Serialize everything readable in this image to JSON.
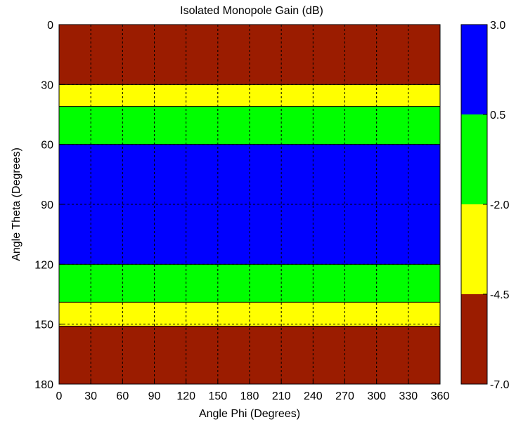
{
  "chart_data": {
    "type": "heatmap",
    "title": "Isolated Monopole Gain (dB)",
    "xlabel": "Angle Phi (Degrees)",
    "ylabel": "Angle Theta (Degrees)",
    "xlim": [
      0,
      360
    ],
    "ylim": [
      0,
      180
    ],
    "y_reversed": true,
    "grid": true,
    "xticks": [
      0,
      30,
      60,
      90,
      120,
      150,
      180,
      210,
      240,
      270,
      300,
      330,
      360
    ],
    "yticks": [
      0,
      30,
      60,
      90,
      120,
      150,
      180
    ],
    "bands": [
      {
        "theta_from": 0,
        "theta_to": 30,
        "level": "-7.0 to -4.5",
        "color": "#9b1c00"
      },
      {
        "theta_from": 30,
        "theta_to": 41,
        "level": "-4.5 to -2.0",
        "color": "#ffff00"
      },
      {
        "theta_from": 41,
        "theta_to": 60,
        "level": "-2.0 to 0.5",
        "color": "#00ff00"
      },
      {
        "theta_from": 60,
        "theta_to": 120,
        "level": "0.5 to 3.0",
        "color": "#0000ff"
      },
      {
        "theta_from": 120,
        "theta_to": 139,
        "level": "-2.0 to 0.5",
        "color": "#00ff00"
      },
      {
        "theta_from": 139,
        "theta_to": 151,
        "level": "-4.5 to -2.0",
        "color": "#ffff00"
      },
      {
        "theta_from": 151,
        "theta_to": 180,
        "level": "-7.0 to -4.5",
        "color": "#9b1c00"
      }
    ],
    "colorbar": {
      "ticks": [
        "3.0",
        "0.5",
        "-2.0",
        "-4.5",
        "-7.0"
      ],
      "levels": [
        {
          "from": -7.0,
          "to": -4.5,
          "color": "#9b1c00"
        },
        {
          "from": -4.5,
          "to": -2.0,
          "color": "#ffff00"
        },
        {
          "from": -2.0,
          "to": 0.5,
          "color": "#00ff00"
        },
        {
          "from": 0.5,
          "to": 3.0,
          "color": "#0000ff"
        }
      ]
    }
  }
}
